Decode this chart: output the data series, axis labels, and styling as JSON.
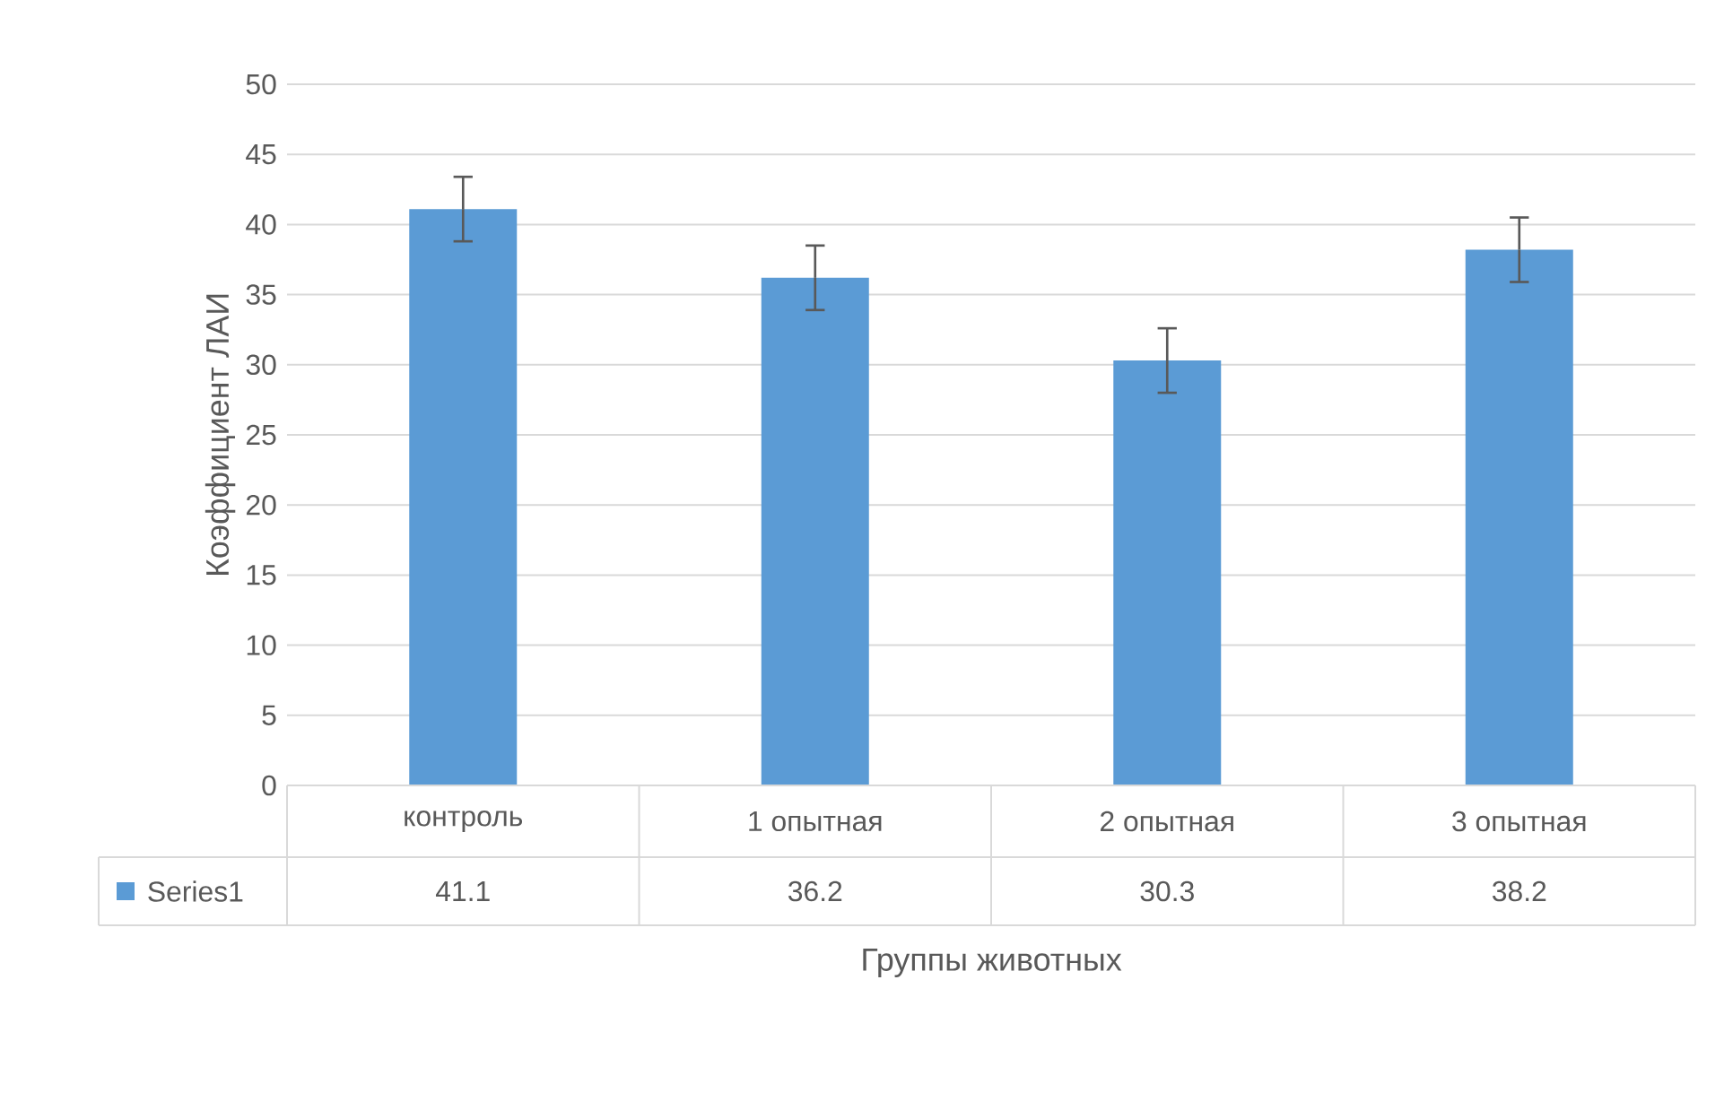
{
  "chart_data": {
    "type": "bar",
    "xlabel": "Группы животных",
    "ylabel": "Коэффициент ЛАИ",
    "categories": [
      "контроль",
      "1 опытная",
      "2 опытная",
      "3 опытная"
    ],
    "series": [
      {
        "name": "Series1",
        "color": "#5b9bd5",
        "values": [
          41.1,
          36.2,
          30.3,
          38.2
        ],
        "errors": [
          2.3,
          2.3,
          2.3,
          2.3
        ]
      }
    ],
    "ylim": [
      0,
      50
    ],
    "yticks": [
      0,
      5,
      10,
      15,
      20,
      25,
      30,
      35,
      40,
      45,
      50
    ],
    "grid": "y",
    "data_labels": true,
    "legend": "bottom"
  }
}
